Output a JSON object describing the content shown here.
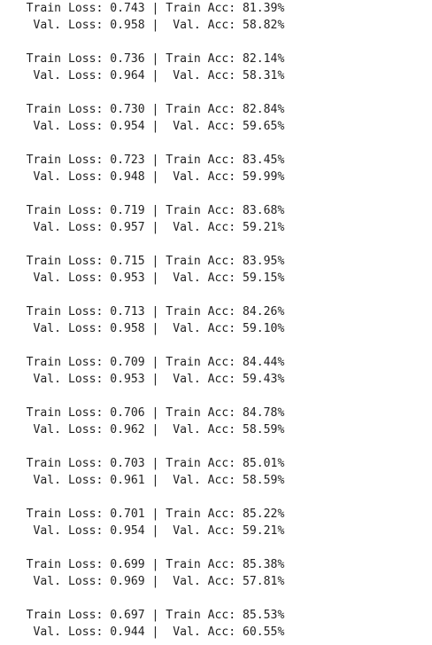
{
  "lines": [
    "   Train Loss: 0.743 | Train Acc: 81.39%",
    "    Val. Loss: 0.958 |  Val. Acc: 58.82%",
    "",
    "   Train Loss: 0.736 | Train Acc: 82.14%",
    "    Val. Loss: 0.964 |  Val. Acc: 58.31%",
    "",
    "   Train Loss: 0.730 | Train Acc: 82.84%",
    "    Val. Loss: 0.954 |  Val. Acc: 59.65%",
    "",
    "   Train Loss: 0.723 | Train Acc: 83.45%",
    "    Val. Loss: 0.948 |  Val. Acc: 59.99%",
    "",
    "   Train Loss: 0.719 | Train Acc: 83.68%",
    "    Val. Loss: 0.957 |  Val. Acc: 59.21%",
    "",
    "   Train Loss: 0.715 | Train Acc: 83.95%",
    "    Val. Loss: 0.953 |  Val. Acc: 59.15%",
    "",
    "   Train Loss: 0.713 | Train Acc: 84.26%",
    "    Val. Loss: 0.958 |  Val. Acc: 59.10%",
    "",
    "   Train Loss: 0.709 | Train Acc: 84.44%",
    "    Val. Loss: 0.953 |  Val. Acc: 59.43%",
    "",
    "   Train Loss: 0.706 | Train Acc: 84.78%",
    "    Val. Loss: 0.962 |  Val. Acc: 58.59%",
    "",
    "   Train Loss: 0.703 | Train Acc: 85.01%",
    "    Val. Loss: 0.961 |  Val. Acc: 58.59%",
    "",
    "   Train Loss: 0.701 | Train Acc: 85.22%",
    "    Val. Loss: 0.954 |  Val. Acc: 59.21%",
    "",
    "   Train Loss: 0.699 | Train Acc: 85.38%",
    "    Val. Loss: 0.969 |  Val. Acc: 57.81%",
    "",
    "   Train Loss: 0.697 | Train Acc: 85.53%",
    "    Val. Loss: 0.944 |  Val. Acc: 60.55%"
  ]
}
